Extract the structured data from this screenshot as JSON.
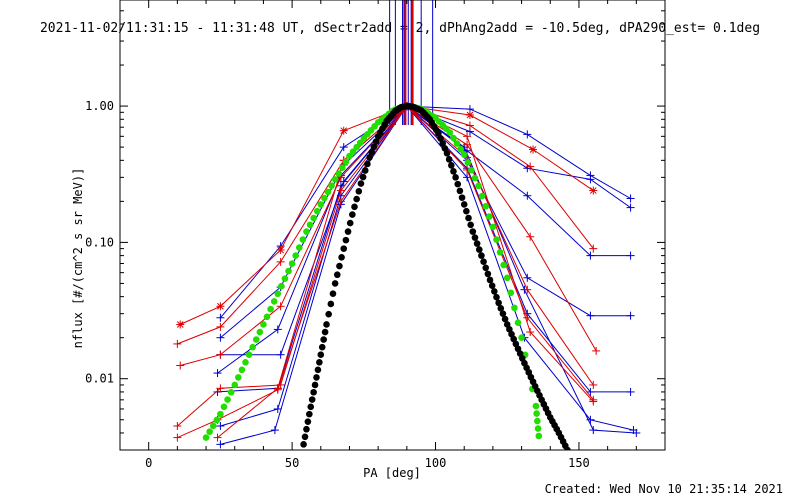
{
  "chart_data": {
    "type": "line",
    "title": "2021-11-02/11:31:15 - 11:31:48 UT, dSectr2add = 2, dPhAng2add = -10.5deg, dPA290_est=  0.1deg",
    "xlabel": "PA [deg]",
    "ylabel": "nflux [#/(cm^2 s sr MeV)]",
    "xlim": [
      -10,
      180
    ],
    "ylim": [
      0.003,
      6.0
    ],
    "yscale": "log",
    "x_ticks": [
      {
        "value": 0,
        "label": "0"
      },
      {
        "value": 50,
        "label": "50"
      },
      {
        "value": 100,
        "label": "100"
      },
      {
        "value": 150,
        "label": "150"
      }
    ],
    "y_ticks": [
      {
        "value": 0.01,
        "label": "0.01"
      },
      {
        "value": 0.1,
        "label": "0.10"
      },
      {
        "value": 1.0,
        "label": "1.00"
      }
    ],
    "series_colors": {
      "blue": "#0000cc",
      "red": "#dd0000",
      "green": "#22dd00",
      "black": "#000000"
    },
    "series": [
      {
        "color": "blue",
        "marker": "plus",
        "x": [
          25,
          46,
          68,
          90,
          112,
          132,
          154,
          168
        ],
        "y": [
          0.028,
          0.094,
          0.5,
          1.0,
          0.95,
          0.62,
          0.31,
          0.21
        ]
      },
      {
        "color": "blue",
        "marker": "plus",
        "x": [
          25,
          46,
          68,
          90,
          112,
          132,
          154,
          168
        ],
        "y": [
          0.02,
          0.047,
          0.37,
          1.0,
          0.65,
          0.35,
          0.29,
          0.18
        ]
      },
      {
        "color": "blue",
        "marker": "plus",
        "x": [
          24,
          45,
          67,
          90,
          111,
          132,
          154,
          168
        ],
        "y": [
          0.011,
          0.023,
          0.31,
          1.0,
          0.47,
          0.22,
          0.08,
          0.08
        ]
      },
      {
        "color": "blue",
        "marker": "plus",
        "x": [
          24,
          45,
          67,
          90,
          111,
          132,
          154,
          168
        ],
        "y": [
          0.008,
          0.0085,
          0.26,
          1.0,
          0.4,
          0.055,
          0.029,
          0.029
        ]
      },
      {
        "color": "blue",
        "marker": "plus",
        "x": [
          25,
          45,
          67,
          90,
          111,
          132,
          154,
          168
        ],
        "y": [
          0.0045,
          0.006,
          0.22,
          1.0,
          0.35,
          0.03,
          0.008,
          0.008
        ]
      },
      {
        "color": "blue",
        "marker": "plus",
        "x": [
          25,
          44,
          67,
          90,
          111,
          131,
          154,
          169
        ],
        "y": [
          0.0033,
          0.0042,
          0.19,
          1.0,
          0.3,
          0.02,
          0.005,
          0.0042
        ]
      },
      {
        "color": "blue",
        "marker": "plus",
        "x": [
          25,
          46,
          68,
          90,
          110,
          131,
          155,
          170
        ],
        "y": [
          0.015,
          0.015,
          0.28,
          1.0,
          0.5,
          0.045,
          0.0042,
          0.004
        ]
      },
      {
        "color": "red",
        "marker": "asterisk",
        "x": [
          11,
          25,
          46,
          68,
          90,
          112,
          134,
          155
        ],
        "y": [
          0.025,
          0.034,
          0.088,
          0.66,
          1.0,
          0.86,
          0.48,
          0.24
        ]
      },
      {
        "color": "red",
        "marker": "plus",
        "x": [
          10,
          25,
          46,
          68,
          90,
          112,
          133,
          155
        ],
        "y": [
          0.018,
          0.024,
          0.072,
          0.4,
          1.0,
          0.72,
          0.36,
          0.09
        ]
      },
      {
        "color": "red",
        "marker": "plus",
        "x": [
          11,
          25,
          46,
          67,
          90,
          111,
          133,
          156
        ],
        "y": [
          0.0125,
          0.015,
          0.034,
          0.3,
          1.0,
          0.52,
          0.11,
          0.016
        ]
      },
      {
        "color": "red",
        "marker": "plus",
        "x": [
          10,
          25,
          46,
          67,
          90,
          111,
          132,
          155
        ],
        "y": [
          0.0045,
          0.0085,
          0.009,
          0.24,
          1.0,
          0.42,
          0.045,
          0.009
        ]
      },
      {
        "color": "red",
        "marker": "plus",
        "x": [
          10,
          24,
          45,
          67,
          90,
          111,
          132,
          155
        ],
        "y": [
          0.0037,
          0.005,
          0.0083,
          0.2,
          1.0,
          0.34,
          0.028,
          0.007
        ]
      },
      {
        "color": "red",
        "marker": "plus",
        "x": [
          24,
          45,
          68,
          90,
          111,
          133,
          155
        ],
        "y": [
          0.0037,
          0.0085,
          0.4,
          1.0,
          0.6,
          0.022,
          0.0068
        ]
      },
      {
        "color": "green",
        "marker": "dots",
        "x": [
          20,
          25,
          30,
          35,
          40,
          45,
          50,
          55,
          60,
          65,
          70,
          75,
          80,
          85,
          88,
          90,
          92,
          95,
          100,
          105,
          110,
          115,
          120,
          125,
          130,
          135,
          136
        ],
        "y": [
          0.0037,
          0.0055,
          0.009,
          0.015,
          0.025,
          0.042,
          0.07,
          0.12,
          0.19,
          0.29,
          0.43,
          0.58,
          0.76,
          0.92,
          0.98,
          1.0,
          0.99,
          0.95,
          0.82,
          0.64,
          0.44,
          0.26,
          0.13,
          0.055,
          0.02,
          0.0063,
          0.0038
        ]
      },
      {
        "color": "black",
        "marker": "dots",
        "x": [
          54,
          56,
          58,
          60,
          62,
          65,
          68,
          71,
          74,
          77,
          80,
          83,
          86,
          88,
          90,
          92,
          95,
          98,
          101,
          104,
          107,
          110,
          113,
          116,
          119,
          122,
          125,
          128,
          131,
          134,
          137,
          140,
          143,
          146
        ],
        "y": [
          0.0033,
          0.0055,
          0.009,
          0.015,
          0.025,
          0.05,
          0.09,
          0.16,
          0.27,
          0.42,
          0.6,
          0.78,
          0.92,
          0.98,
          1.0,
          0.99,
          0.93,
          0.8,
          0.63,
          0.45,
          0.3,
          0.19,
          0.12,
          0.08,
          0.053,
          0.036,
          0.025,
          0.018,
          0.013,
          0.0095,
          0.007,
          0.0052,
          0.004,
          0.003
        ]
      }
    ],
    "vertical_lines": [
      {
        "color": "blue",
        "x": [
          84,
          86,
          88.5,
          89,
          90.5,
          91.5,
          95,
          99
        ]
      },
      {
        "color": "red",
        "x": [
          89.5,
          92
        ]
      }
    ],
    "grid": false,
    "footer": "Created: Wed Nov 10 21:35:14 2021"
  }
}
